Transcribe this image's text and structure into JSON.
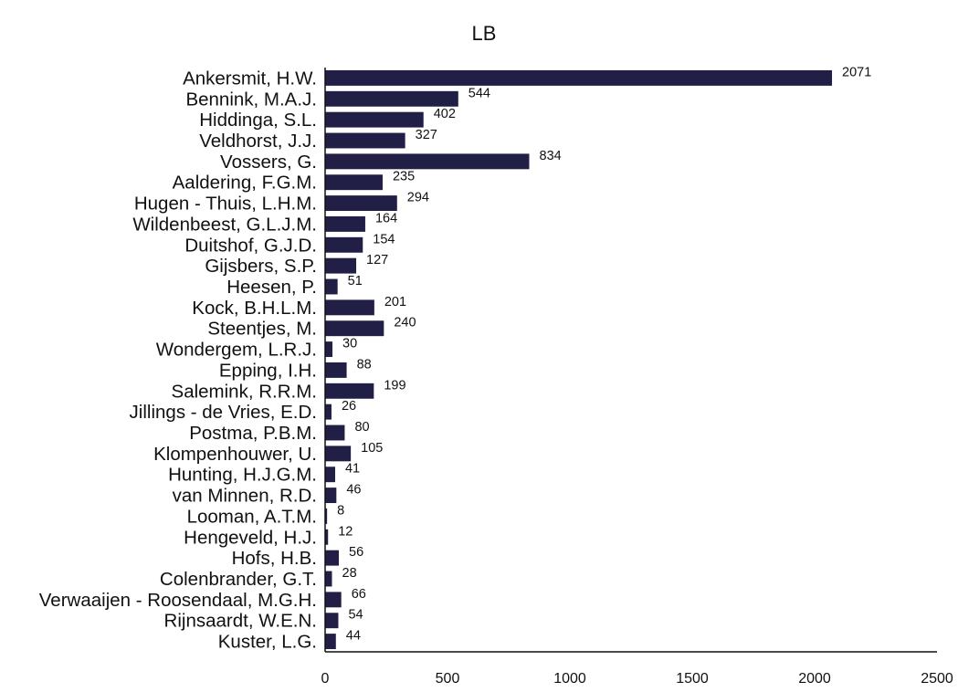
{
  "chart_data": {
    "type": "bar",
    "orientation": "horizontal",
    "title": "LB",
    "xlabel": "",
    "ylabel": "",
    "xlim": [
      0,
      2500
    ],
    "xticks": [
      0,
      500,
      1000,
      1500,
      2000,
      2500
    ],
    "grid": false,
    "legend": "none",
    "bar_color": "#221f47",
    "categories": [
      "Ankersmit, H.W.",
      "Bennink, M.A.J.",
      "Hiddinga, S.L.",
      "Veldhorst, J.J.",
      "Vossers, G.",
      "Aaldering, F.G.M.",
      "Hugen - Thuis, L.H.M.",
      "Wildenbeest, G.L.J.M.",
      "Duitshof, G.J.D.",
      "Gijsbers, S.P.",
      "Heesen, P.",
      "Kock, B.H.L.M.",
      "Steentjes, M.",
      "Wondergem, L.R.J.",
      "Epping, I.H.",
      "Salemink, R.R.M.",
      "Jillings - de Vries, E.D.",
      "Postma, P.B.M.",
      "Klompenhouwer, U.",
      "Hunting, H.J.G.M.",
      "van Minnen, R.D.",
      "Looman, A.T.M.",
      "Hengeveld, H.J.",
      "Hofs, H.B.",
      "Colenbrander, G.T.",
      "Verwaaijen - Roosendaal, M.G.H.",
      "Rijnsaardt, W.E.N.",
      "Kuster, L.G."
    ],
    "values": [
      2071,
      544,
      402,
      327,
      834,
      235,
      294,
      164,
      154,
      127,
      51,
      201,
      240,
      30,
      88,
      199,
      26,
      80,
      105,
      41,
      46,
      8,
      12,
      56,
      28,
      66,
      54,
      44
    ]
  }
}
